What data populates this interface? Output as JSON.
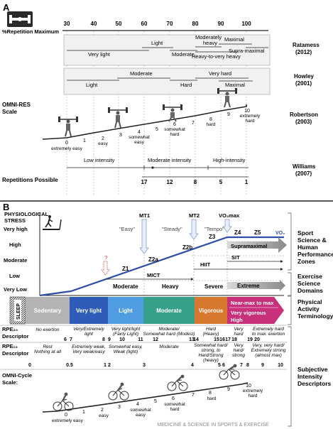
{
  "panelA": {
    "letter": "A",
    "pct_label": "%Repetition Maximum",
    "axis_ticks": [
      "30",
      "40",
      "50",
      "60",
      "70",
      "80",
      "90",
      "100"
    ],
    "ratamess": {
      "light": "Light",
      "very_light": "Very light",
      "moderate": "Moderate",
      "mod_heavy_1": "Moderately",
      "mod_heavy_2": "heavy",
      "maximal": "Maximal",
      "supra": "Supra-maximal",
      "heavy_vh": "Heavy-to-very heavy",
      "ref1": "Ratamess",
      "ref2": "(2012)"
    },
    "howley": {
      "moderate": "Moderate",
      "very_hard": "Very hard",
      "light": "Light",
      "hard": "Hard",
      "maximal": "Maximal",
      "ref1": "Howley",
      "ref2": "(2001)"
    },
    "omni": {
      "label1": "OMNI-RES",
      "label2": "Scale",
      "nums": [
        "0",
        "1",
        "2",
        "3",
        "4",
        "5",
        "6",
        "7",
        "8",
        "9",
        "10"
      ],
      "d0": "extremely easy",
      "d2": "easy",
      "d4a": "somewhat",
      "d4b": "easy",
      "d6a": "somewhat",
      "d6b": "hard",
      "d8": "hard",
      "d10a": "extremely",
      "d10b": "hard",
      "ref1": "Robertson",
      "ref2": "(2003)"
    },
    "williams": {
      "low": "Low intensity",
      "moderate": "Moderate intensity",
      "high": "High-intensity",
      "reps_label": "Repetitions Possible",
      "reps": [
        "17",
        "12",
        "8",
        "5",
        "1"
      ],
      "ref1": "Williams",
      "ref2": "(2007)"
    }
  },
  "panelB": {
    "letter": "B",
    "stress1": "PHYSIOLOGICAL",
    "stress2": "STRESS",
    "yaxis": [
      "Very high",
      "High",
      "Moderate",
      "Low",
      "Very Low"
    ],
    "markers": [
      "MT1",
      "MT2",
      "VO₂max"
    ],
    "tempos": [
      "\"Easy\"",
      "\"Steady\"",
      "\"Tempo\""
    ],
    "zones": [
      "Z1",
      "Z2a",
      "Z2b",
      "Z3",
      "Z4",
      "Z5",
      "VO₂"
    ],
    "supra": "Supramaximal",
    "hiit": "HIIT",
    "sit": "SIT",
    "mict": "MICT",
    "domains": [
      "Moderate",
      "Heavy",
      "Severe",
      "Extreme"
    ],
    "right_labels": {
      "sport": [
        "Sport",
        "Science &",
        "Human",
        "Performance",
        "Zones"
      ],
      "exercise": [
        "Exercise",
        "Science",
        "Domains"
      ],
      "activity": [
        "Physical",
        "Activity",
        "Terminology"
      ],
      "subjective": [
        "Subjective",
        "Intensity",
        "Descriptors"
      ]
    },
    "activity_bar": {
      "sleep": "SLEEP",
      "sedentary": "Sedentary",
      "very_light": "Very light",
      "light": "Light",
      "moderate": "Moderate",
      "vigorous": "Vigorous",
      "near_max": "Near-max to max",
      "very_vigorous": "Very vigorous",
      "high": "High"
    },
    "rpe20": {
      "label1": "RPE₂₀",
      "label2": "Descriptor",
      "d_no": "No exertion",
      "d_vel1": "Very/Extremely",
      "d_vel2": "light",
      "d_vl1": "Very light/light",
      "d_vl2": "(Fairly Light)",
      "d_mod1": "Moderate/",
      "d_mod2": "Somewhat hard (Modest)",
      "d_hard1": "Hard",
      "d_hard2": "(Heavy)",
      "d_vh1": "Very",
      "d_vh2": "hard",
      "d_eh1": "Extremely hard",
      "d_eh2": "to max. exertion",
      "nums": [
        "6",
        "7",
        "8",
        "9",
        "10",
        "11",
        "12",
        "13",
        "14",
        "15",
        "16",
        "17",
        "18",
        "19",
        "20"
      ]
    },
    "rpe10": {
      "label1": "RPE₁₀",
      "label2": "Descriptor",
      "d_rest1": "Rest",
      "d_rest2": "Nothing at all",
      "d_ew1": "Extremely weak,",
      "d_ew2": "Very weak/easy",
      "d_se1": "Somewhat easy,",
      "d_se2": "Weak (light)",
      "d_mod": "Moderate",
      "d_sh1": "Somewhat hard/",
      "d_sh2": "strong, to",
      "d_sh3": "Hard/Strong",
      "d_sh4": "(heavy)",
      "d_vh1": "Very",
      "d_vh2": "hard/",
      "d_vh3": "strong",
      "d_ve1": "Very, very hard/",
      "d_ve2": "Extremely strong",
      "d_ve3": "(almost max)",
      "nums": [
        "0",
        "0.5",
        "1",
        "2",
        "3",
        "4",
        "5",
        "6",
        "7",
        "8",
        "9",
        "10"
      ]
    },
    "omni_cycle": {
      "label1": "OMNI-Cycle",
      "label2": "Scale:",
      "nums": [
        "0",
        "1",
        "2",
        "3",
        "4",
        "5",
        "6",
        "7",
        "8",
        "9",
        "10"
      ],
      "d0": "extremely easy",
      "d2": "easy",
      "d4a": "somewhat",
      "d4b": "easy",
      "d6a": "somewhat",
      "d6b": "hard",
      "d8": "hard",
      "d10a": "extremely",
      "d10b": "hard"
    },
    "watermark": "MEDICINE & SCIENCE IN SPORTS & EXERCISE"
  },
  "colors": {
    "sedentary": "#b4b4b4",
    "very_light": "#2e5cb8",
    "light": "#4f9de0",
    "moderate": "#35a18b",
    "vigorous": "#d8782f",
    "near_max": "#c8317a",
    "ramp": "#2e4fa8",
    "supra_arrow": "#9a9a9a"
  }
}
